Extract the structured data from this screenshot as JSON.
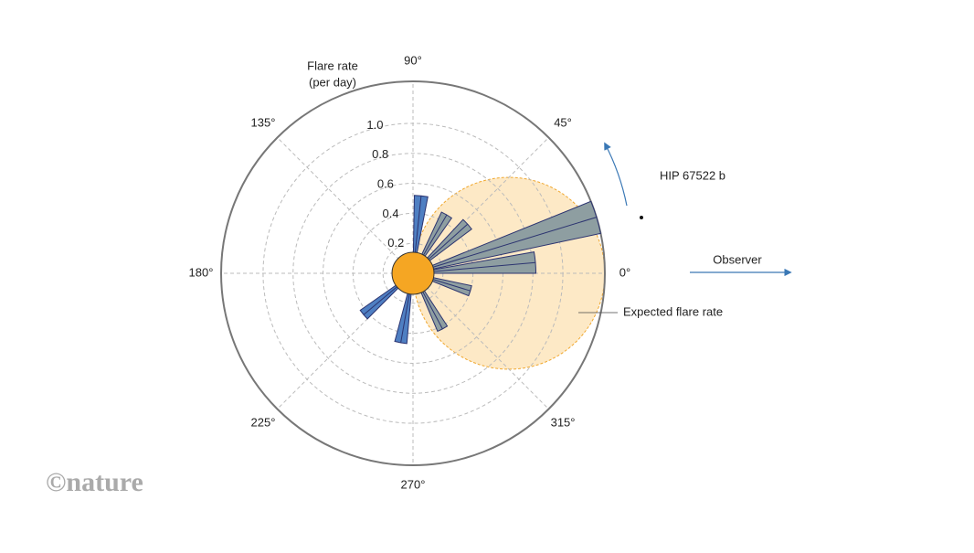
{
  "chart_data": {
    "type": "polar-bar",
    "raxis_label": [
      "Flare rate",
      "(per day)"
    ],
    "rlim": [
      0,
      1.28
    ],
    "rticks": [
      0.2,
      0.4,
      0.6,
      0.8,
      1.0
    ],
    "rtick_labels": [
      "0.2",
      "0.4",
      "0.6",
      "0.8",
      "1.0"
    ],
    "thetaticks": [
      {
        "value": 0,
        "label": "0°"
      },
      {
        "value": 45,
        "label": "45°"
      },
      {
        "value": 90,
        "label": "90°"
      },
      {
        "value": 135,
        "label": "135°"
      },
      {
        "value": 180,
        "label": "180°"
      },
      {
        "value": 225,
        "label": "225°"
      },
      {
        "value": 270,
        "label": "270°"
      },
      {
        "value": 315,
        "label": "315°"
      }
    ],
    "angles": [
      5,
      17,
      42,
      60,
      84,
      343,
      298,
      260,
      220
    ],
    "values": [
      0.82,
      1.28,
      0.49,
      0.45,
      0.52,
      0.4,
      0.42,
      0.47,
      0.43
    ],
    "colors": [
      "#8e9ea1",
      "#8e9ea1",
      "#8e9ea1",
      "#8e9ea1",
      "#4f7fc2",
      "#8e9ea1",
      "#8e9ea1",
      "#4f7fc2",
      "#4f7fc2"
    ],
    "bar_width": 10,
    "expected_amplitude": 1.28,
    "expected_label": "Expected flare rate",
    "baseline_rate": 0.14,
    "planet_label": "HIP 67522 b",
    "observer_label": "Observer",
    "watermark": "©nature"
  }
}
